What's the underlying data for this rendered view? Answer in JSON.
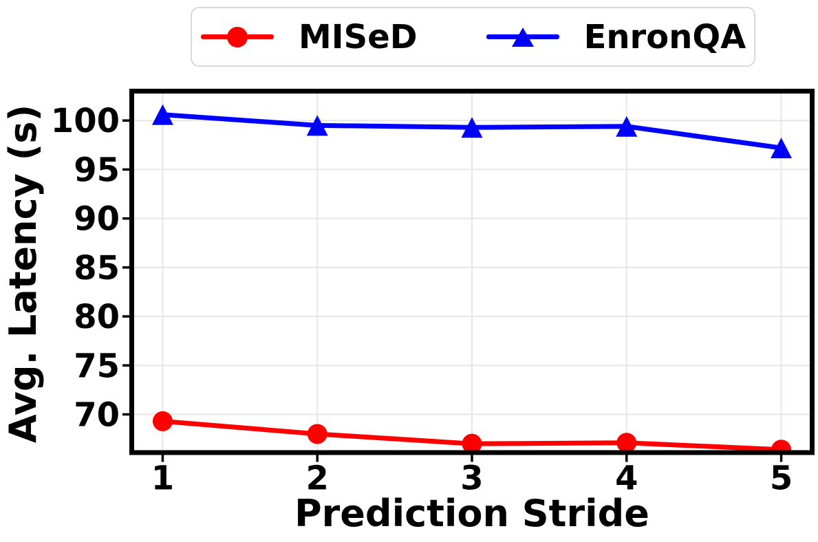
{
  "colors": {
    "mised": "#ff0000",
    "enronqa": "#0000ff",
    "grid": "#e6e6e6",
    "spine": "#000000",
    "legend_border": "#d9d9d9",
    "background": "#ffffff"
  },
  "legend": {
    "items": [
      {
        "label": "MISeD",
        "marker": "circle",
        "color": "#ff0000"
      },
      {
        "label": "EnronQA",
        "marker": "triangle",
        "color": "#0000ff"
      }
    ]
  },
  "chart_data": {
    "type": "line",
    "x": [
      1,
      2,
      3,
      4,
      5
    ],
    "series": [
      {
        "name": "MISeD",
        "color": "#ff0000",
        "marker": "circle",
        "values": [
          69.3,
          68.0,
          67.0,
          67.1,
          66.4
        ]
      },
      {
        "name": "EnronQA",
        "color": "#0000ff",
        "marker": "triangle",
        "values": [
          100.6,
          99.5,
          99.3,
          99.4,
          97.2
        ]
      }
    ],
    "title": "",
    "xlabel": "Prediction Stride",
    "ylabel": "Avg. Latency (s)",
    "xticks": [
      1,
      2,
      3,
      4,
      5
    ],
    "yticks": [
      70,
      75,
      80,
      85,
      90,
      95,
      100
    ],
    "xlim": [
      0.8,
      5.2
    ],
    "ylim": [
      66.1,
      103.0
    ],
    "grid": true,
    "legend_position": "top-center"
  }
}
